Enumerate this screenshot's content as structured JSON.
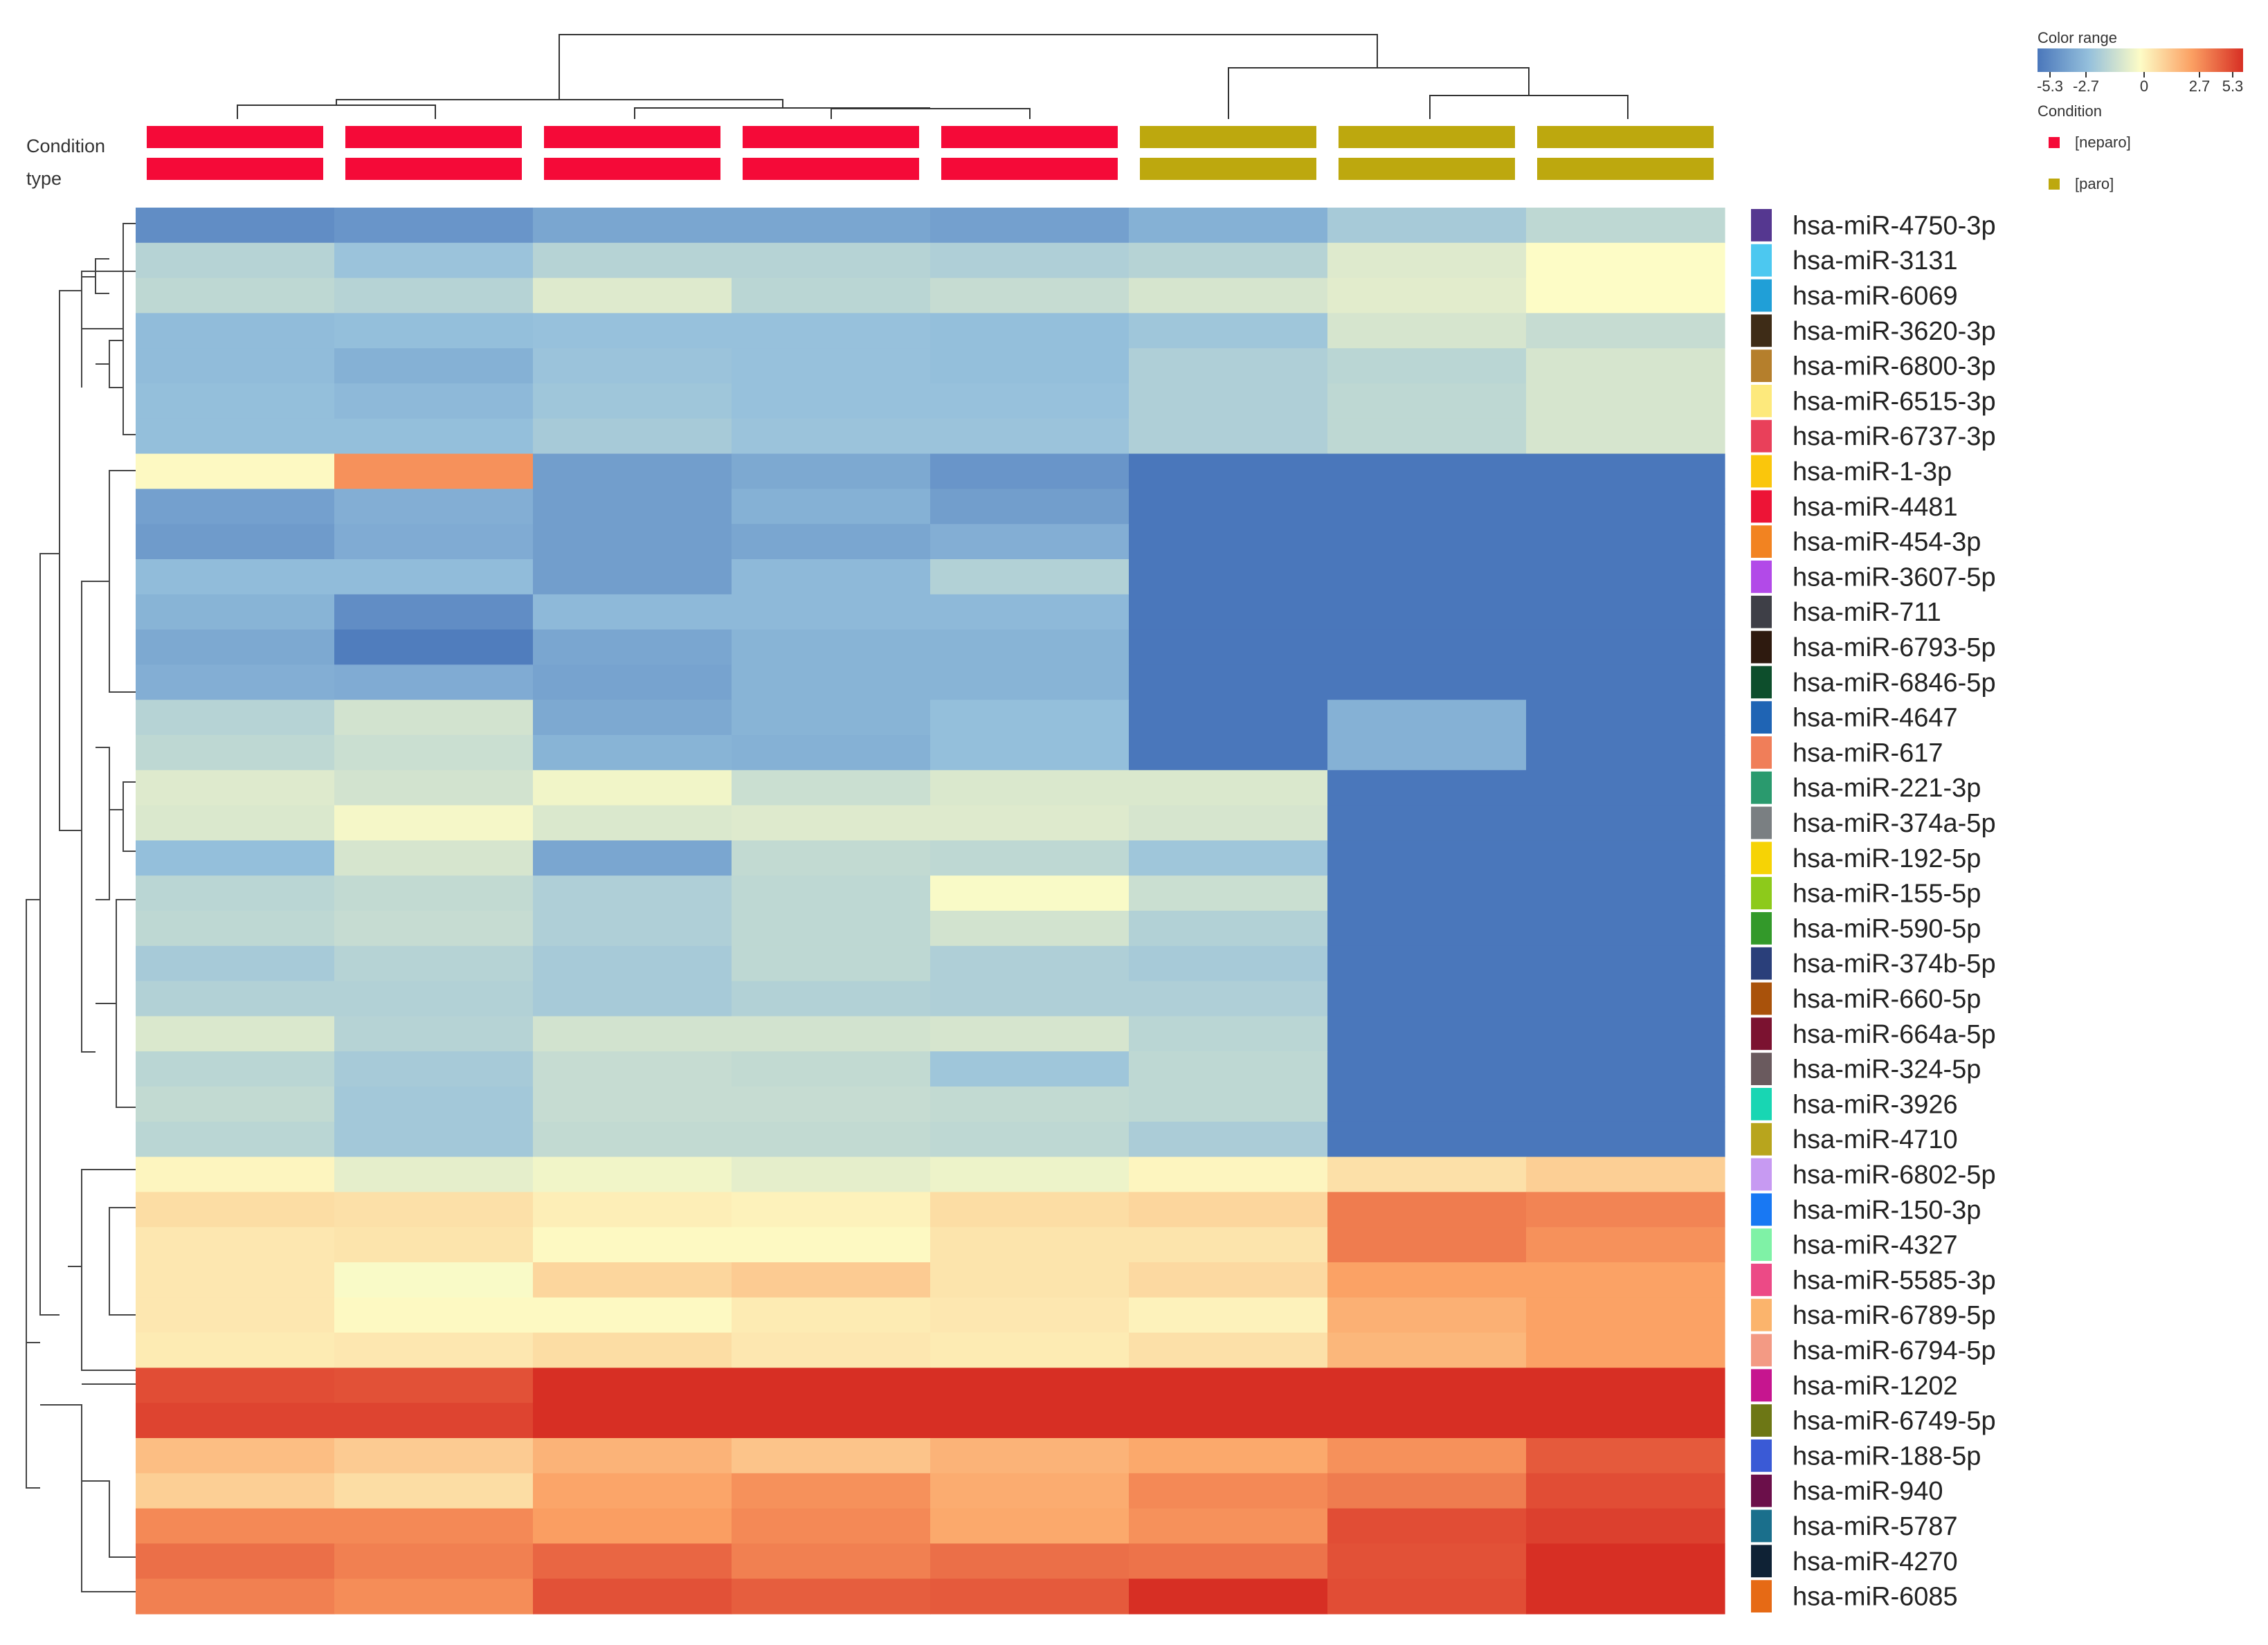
{
  "chart_data": {
    "type": "heatmap",
    "title": "",
    "legend": {
      "title": "Color range",
      "tick_labels": [
        "-5.3",
        "-2.7",
        "0",
        "2.7",
        "5.3"
      ],
      "range": [
        -5.3,
        5.3
      ],
      "colors": {
        "low": "#4a77bb",
        "mid": "#fdfcc6",
        "high": "#d72f24"
      }
    },
    "condition_legend": {
      "title": "Condition",
      "items": [
        {
          "label": "[neparo]",
          "color": "#f50a38"
        },
        {
          "label": "[paro]",
          "color": "#bda80e"
        }
      ]
    },
    "annotation_labels": [
      "Condition",
      "type"
    ],
    "samples": [
      {
        "condition": "neparo"
      },
      {
        "condition": "neparo"
      },
      {
        "condition": "neparo"
      },
      {
        "condition": "neparo"
      },
      {
        "condition": "neparo"
      },
      {
        "condition": "paro"
      },
      {
        "condition": "paro"
      },
      {
        "condition": "paro"
      }
    ],
    "rows": [
      {
        "label": "hsa-miR-4750-3p",
        "swatch": "#553790",
        "values": [
          -4.5,
          -4.2,
          -3.6,
          -3.6,
          -3.8,
          -3.2,
          -2.2,
          -1.6
        ]
      },
      {
        "label": "hsa-miR-3131",
        "swatch": "#4cc8f0",
        "values": [
          -1.8,
          -2.5,
          -1.8,
          -1.8,
          -2.0,
          -1.8,
          -0.8,
          0.0
        ]
      },
      {
        "label": "hsa-miR-6069",
        "swatch": "#209fd7",
        "values": [
          -1.6,
          -1.8,
          -0.8,
          -1.7,
          -1.4,
          -1.0,
          -0.7,
          0.0
        ]
      },
      {
        "label": "hsa-miR-3620-3p",
        "swatch": "#3e2c17",
        "values": [
          -2.8,
          -2.7,
          -2.6,
          -2.6,
          -2.7,
          -2.4,
          -1.0,
          -1.4
        ]
      },
      {
        "label": "hsa-miR-6800-3p",
        "swatch": "#b57f2c",
        "values": [
          -2.8,
          -3.2,
          -2.5,
          -2.6,
          -2.7,
          -2.0,
          -1.7,
          -1.0
        ]
      },
      {
        "label": "hsa-miR-6515-3p",
        "swatch": "#fde97c",
        "values": [
          -2.7,
          -2.9,
          -2.4,
          -2.6,
          -2.6,
          -2.0,
          -1.6,
          -1.0
        ]
      },
      {
        "label": "hsa-miR-6737-3p",
        "swatch": "#e9405a",
        "values": [
          -2.7,
          -2.7,
          -2.2,
          -2.5,
          -2.5,
          -2.0,
          -1.6,
          -1.0
        ]
      },
      {
        "label": "hsa-miR-1-3p",
        "swatch": "#fac60c",
        "values": [
          0.1,
          3.0,
          -3.9,
          -3.5,
          -4.2,
          -5.3,
          -5.3,
          -5.3
        ]
      },
      {
        "label": "hsa-miR-4481",
        "swatch": "#ed1436",
        "values": [
          -3.8,
          -3.3,
          -3.9,
          -3.2,
          -3.9,
          -5.3,
          -5.3,
          -5.3
        ]
      },
      {
        "label": "hsa-miR-454-3p",
        "swatch": "#f28321",
        "values": [
          -4.0,
          -3.4,
          -3.9,
          -3.6,
          -3.3,
          -5.3,
          -5.3,
          -5.3
        ]
      },
      {
        "label": "hsa-miR-3607-5p",
        "swatch": "#b24ae8",
        "values": [
          -2.8,
          -2.8,
          -3.9,
          -2.9,
          -1.9,
          -5.3,
          -5.3,
          -5.3
        ]
      },
      {
        "label": "hsa-miR-711",
        "swatch": "#3e3f47",
        "values": [
          -3.1,
          -4.5,
          -2.9,
          -2.9,
          -2.9,
          -5.3,
          -5.3,
          -5.3
        ]
      },
      {
        "label": "hsa-miR-6793-5p",
        "swatch": "#2e1a0f",
        "values": [
          -3.5,
          -5.1,
          -3.6,
          -3.1,
          -3.1,
          -5.3,
          -5.3,
          -5.3
        ]
      },
      {
        "label": "hsa-miR-6846-5p",
        "swatch": "#0d4e2c",
        "values": [
          -3.3,
          -3.4,
          -3.7,
          -3.1,
          -3.1,
          -5.3,
          -5.3,
          -5.3
        ]
      },
      {
        "label": "hsa-miR-4647",
        "swatch": "#1f64b4",
        "values": [
          -1.8,
          -1.1,
          -3.5,
          -3.1,
          -2.7,
          -5.3,
          -3.2,
          -5.3
        ]
      },
      {
        "label": "hsa-miR-617",
        "swatch": "#f07e59",
        "values": [
          -1.6,
          -1.3,
          -3.1,
          -3.2,
          -2.7,
          -5.3,
          -3.2,
          -5.3
        ]
      },
      {
        "label": "hsa-miR-221-3p",
        "swatch": "#2a9a6e",
        "values": [
          -0.8,
          -1.1,
          -0.3,
          -1.3,
          -0.9,
          -0.9,
          -5.3,
          -5.3
        ]
      },
      {
        "label": "hsa-miR-374a-5p",
        "swatch": "#7a7f82",
        "values": [
          -0.9,
          -0.2,
          -0.9,
          -0.8,
          -0.8,
          -1.0,
          -5.3,
          -5.3
        ]
      },
      {
        "label": "hsa-miR-192-5p",
        "swatch": "#f6d305",
        "values": [
          -2.7,
          -1.0,
          -3.6,
          -1.5,
          -1.6,
          -2.4,
          -5.3,
          -5.3
        ]
      },
      {
        "label": "hsa-miR-155-5p",
        "swatch": "#8dca1b",
        "values": [
          -1.7,
          -1.5,
          -2.0,
          -1.6,
          -0.1,
          -1.3,
          -5.3,
          -5.3
        ]
      },
      {
        "label": "hsa-miR-590-5p",
        "swatch": "#33992a",
        "values": [
          -1.6,
          -1.4,
          -2.0,
          -1.6,
          -1.1,
          -1.9,
          -5.3,
          -5.3
        ]
      },
      {
        "label": "hsa-miR-374b-5p",
        "swatch": "#2a3f7a",
        "values": [
          -2.2,
          -1.8,
          -2.2,
          -1.6,
          -2.0,
          -2.2,
          -5.3,
          -5.3
        ]
      },
      {
        "label": "hsa-miR-660-5p",
        "swatch": "#a9520b",
        "values": [
          -1.9,
          -1.9,
          -2.2,
          -1.9,
          -2.0,
          -2.0,
          -5.3,
          -5.3
        ]
      },
      {
        "label": "hsa-miR-664a-5p",
        "swatch": "#7b1230",
        "values": [
          -0.9,
          -1.8,
          -1.1,
          -1.1,
          -1.0,
          -1.7,
          -5.3,
          -5.3
        ]
      },
      {
        "label": "hsa-miR-324-5p",
        "swatch": "#6a5a5e",
        "values": [
          -1.7,
          -2.2,
          -1.4,
          -1.5,
          -2.4,
          -1.6,
          -5.3,
          -5.3
        ]
      },
      {
        "label": "hsa-miR-3926",
        "swatch": "#18d6b3",
        "values": [
          -1.5,
          -2.3,
          -1.4,
          -1.4,
          -1.5,
          -1.6,
          -5.3,
          -5.3
        ]
      },
      {
        "label": "hsa-miR-4710",
        "swatch": "#b8a51d",
        "values": [
          -1.7,
          -2.3,
          -1.5,
          -1.5,
          -1.6,
          -2.1,
          -5.3,
          -5.3
        ]
      },
      {
        "label": "hsa-miR-6802-5p",
        "swatch": "#c79af2",
        "values": [
          0.2,
          -0.6,
          -0.3,
          -0.6,
          -0.4,
          0.2,
          0.8,
          1.3
        ]
      },
      {
        "label": "hsa-miR-150-3p",
        "swatch": "#1878f3",
        "values": [
          0.9,
          0.8,
          0.4,
          0.3,
          0.9,
          1.1,
          3.5,
          3.3
        ]
      },
      {
        "label": "hsa-miR-4327",
        "swatch": "#7ff2a6",
        "values": [
          0.6,
          0.7,
          0.1,
          0.1,
          0.7,
          0.7,
          3.5,
          3.0
        ]
      },
      {
        "label": "hsa-miR-5585-3p",
        "swatch": "#ec4a86",
        "values": [
          0.6,
          -0.1,
          1.1,
          1.4,
          0.7,
          1.0,
          2.6,
          2.6
        ]
      },
      {
        "label": "hsa-miR-6789-5p",
        "swatch": "#fbb46c",
        "values": [
          0.6,
          0.1,
          0.1,
          0.5,
          0.6,
          0.3,
          2.2,
          2.6
        ]
      },
      {
        "label": "hsa-miR-6794-5p",
        "swatch": "#f39a84",
        "values": [
          0.5,
          0.6,
          0.9,
          0.6,
          0.5,
          0.8,
          2.0,
          2.6
        ]
      },
      {
        "label": "hsa-miR-1202",
        "swatch": "#c6158f",
        "values": [
          4.6,
          4.5,
          5.3,
          5.3,
          5.3,
          5.3,
          5.3,
          5.3
        ]
      },
      {
        "label": "hsa-miR-6749-5p",
        "swatch": "#6d7715",
        "values": [
          4.8,
          4.8,
          5.3,
          5.3,
          5.3,
          5.3,
          5.3,
          5.3
        ]
      },
      {
        "label": "hsa-miR-188-5p",
        "swatch": "#3a5ad6",
        "values": [
          1.8,
          1.4,
          2.1,
          1.6,
          2.1,
          2.4,
          3.0,
          4.3
        ]
      },
      {
        "label": "hsa-miR-940",
        "swatch": "#6b0f4a",
        "values": [
          1.3,
          0.9,
          2.5,
          3.0,
          2.3,
          3.2,
          3.5,
          4.6
        ]
      },
      {
        "label": "hsa-miR-5787",
        "swatch": "#1a6f8c",
        "values": [
          3.2,
          3.2,
          2.7,
          3.2,
          2.4,
          3.0,
          4.6,
          4.9
        ]
      },
      {
        "label": "hsa-miR-4270",
        "swatch": "#0f2235",
        "values": [
          3.8,
          3.4,
          4.0,
          3.4,
          3.8,
          3.7,
          4.5,
          5.3
        ]
      },
      {
        "label": "hsa-miR-6085",
        "swatch": "#e66a15",
        "values": [
          3.4,
          3.1,
          4.5,
          4.2,
          4.3,
          5.3,
          4.6,
          5.3
        ]
      }
    ]
  }
}
